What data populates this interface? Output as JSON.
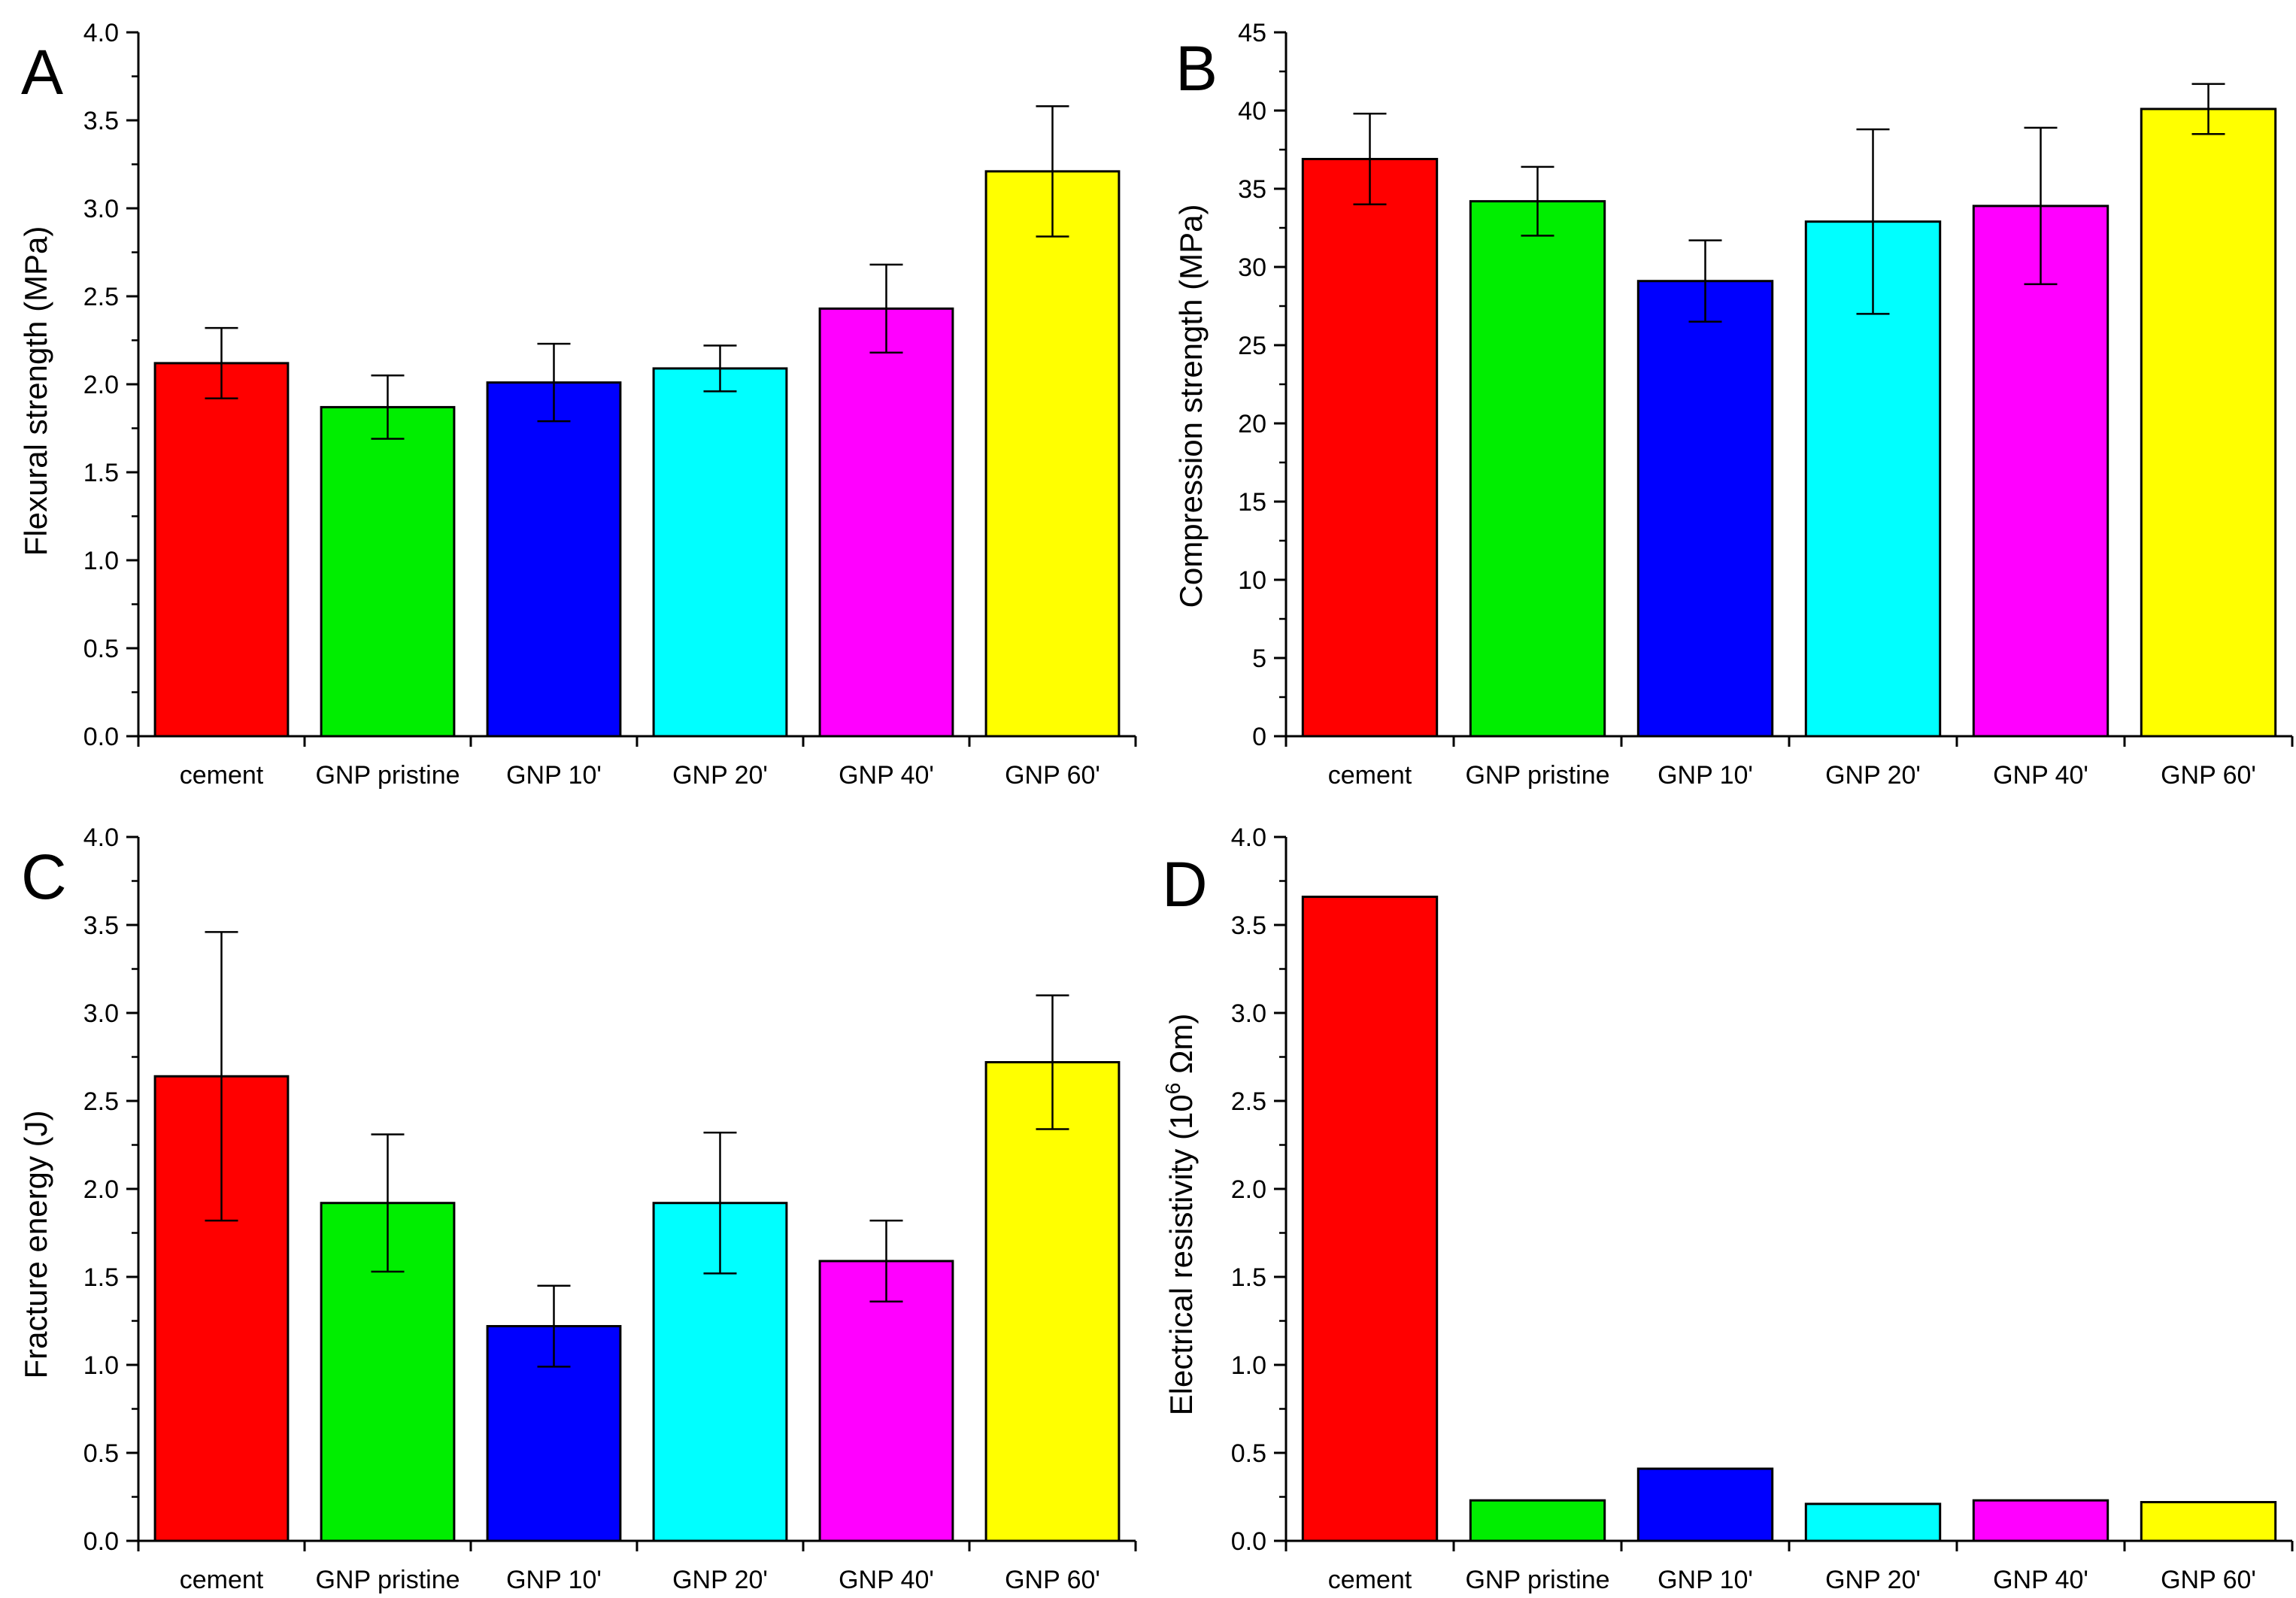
{
  "chart_data": [
    {
      "panel": "A",
      "type": "bar",
      "categories": [
        "cement",
        "GNP pristine",
        "GNP 10'",
        "GNP 20'",
        "GNP 40'",
        "GNP 60'"
      ],
      "values": [
        2.12,
        1.87,
        2.01,
        2.09,
        2.43,
        3.21
      ],
      "errors": [
        0.2,
        0.18,
        0.22,
        0.13,
        0.25,
        0.37
      ],
      "colors": [
        "#ff0000",
        "#00ee00",
        "#0000ff",
        "#00ffff",
        "#ff00ff",
        "#ffff00"
      ],
      "ylabel": "Flexural strength (MPa)",
      "ylim": [
        0,
        4.0
      ],
      "yticks": [
        "0.0",
        "0.5",
        "1.0",
        "1.5",
        "2.0",
        "2.5",
        "3.0",
        "3.5",
        "4.0"
      ]
    },
    {
      "panel": "B",
      "type": "bar",
      "categories": [
        "cement",
        "GNP pristine",
        "GNP 10'",
        "GNP 20'",
        "GNP 40'",
        "GNP 60'"
      ],
      "values": [
        36.9,
        34.2,
        29.1,
        32.9,
        33.9,
        40.1
      ],
      "errors": [
        2.9,
        2.2,
        2.6,
        5.9,
        5.0,
        1.6
      ],
      "colors": [
        "#ff0000",
        "#00ee00",
        "#0000ff",
        "#00ffff",
        "#ff00ff",
        "#ffff00"
      ],
      "ylabel": "Compression strength (MPa)",
      "ylim": [
        0,
        45
      ],
      "yticks": [
        "0",
        "5",
        "10",
        "15",
        "20",
        "25",
        "30",
        "35",
        "40",
        "45"
      ]
    },
    {
      "panel": "C",
      "type": "bar",
      "categories": [
        "cement",
        "GNP pristine",
        "GNP 10'",
        "GNP 20'",
        "GNP 40'",
        "GNP 60'"
      ],
      "values": [
        2.64,
        1.92,
        1.22,
        1.92,
        1.59,
        2.72
      ],
      "errors": [
        0.82,
        0.39,
        0.23,
        0.4,
        0.23,
        0.38
      ],
      "colors": [
        "#ff0000",
        "#00ee00",
        "#0000ff",
        "#00ffff",
        "#ff00ff",
        "#ffff00"
      ],
      "ylabel": "Fracture energy (J)",
      "ylim": [
        0,
        4.0
      ],
      "yticks": [
        "0.0",
        "0.5",
        "1.0",
        "1.5",
        "2.0",
        "2.5",
        "3.0",
        "3.5",
        "4.0"
      ]
    },
    {
      "panel": "D",
      "type": "bar",
      "categories": [
        "cement",
        "GNP pristine",
        "GNP 10'",
        "GNP 20'",
        "GNP 40'",
        "GNP 60'"
      ],
      "values": [
        3.66,
        0.23,
        0.41,
        0.21,
        0.23,
        0.22
      ],
      "errors": [
        0,
        0,
        0,
        0,
        0,
        0
      ],
      "colors": [
        "#ff0000",
        "#00ee00",
        "#0000ff",
        "#00ffff",
        "#ff00ff",
        "#ffff00"
      ],
      "ylabel_parts": [
        "Electrical resistivity (10",
        "6",
        " Ωm)"
      ],
      "ylim": [
        0,
        4.0
      ],
      "yticks": [
        "0.0",
        "0.5",
        "1.0",
        "1.5",
        "2.0",
        "2.5",
        "3.0",
        "3.5",
        "4.0"
      ]
    }
  ]
}
